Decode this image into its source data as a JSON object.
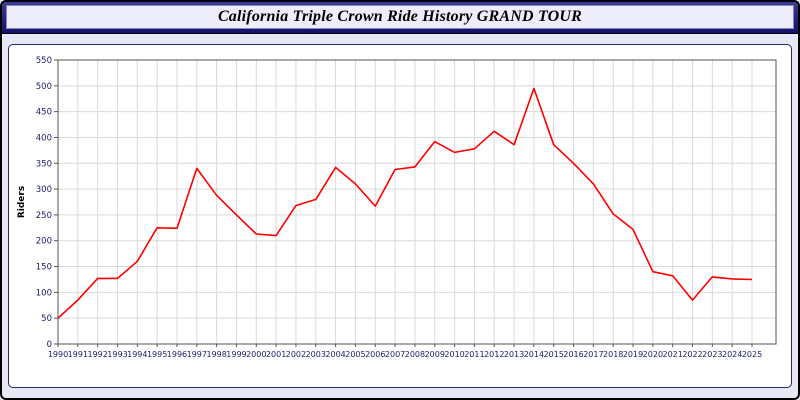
{
  "page": {
    "title_bar": {
      "title": "California Triple Crown Ride History GRAND TOUR"
    }
  },
  "colors": {
    "page_background": "#e7e7f6",
    "title_bar_navy": "#12126a",
    "title_inner_bg": "#ededfb",
    "panel_border": "#2a2a6a",
    "grid_line": "#d9d9d9",
    "axis_line": "#555555",
    "tick_label": "#1a1a70",
    "series_line": "#ff0000"
  },
  "chart_data": {
    "type": "line",
    "title": "California Triple Crown Ride History GRAND TOUR",
    "xlabel": "",
    "ylabel": "Riders",
    "ylim": [
      0,
      550
    ],
    "ytick_step": 50,
    "grid": true,
    "legend_position": "none",
    "line_color": "#ff0000",
    "categories": [
      1990,
      1991,
      1992,
      1993,
      1994,
      1995,
      1996,
      1997,
      1998,
      1999,
      2000,
      2001,
      2002,
      2003,
      2004,
      2005,
      2006,
      2007,
      2008,
      2009,
      2010,
      2011,
      2012,
      2013,
      2014,
      2015,
      2016,
      2017,
      2018,
      2019,
      2020,
      2021,
      2022,
      2023,
      2024,
      2025
    ],
    "series": [
      {
        "name": "Riders",
        "values": [
          50,
          85,
          127,
          127,
          160,
          225,
          224,
          340,
          288,
          250,
          213,
          210,
          268,
          280,
          342,
          310,
          267,
          338,
          343,
          392,
          371,
          378,
          412,
          386,
          495,
          386,
          350,
          310,
          252,
          222,
          140,
          132,
          85,
          130,
          126,
          125
        ]
      }
    ]
  }
}
